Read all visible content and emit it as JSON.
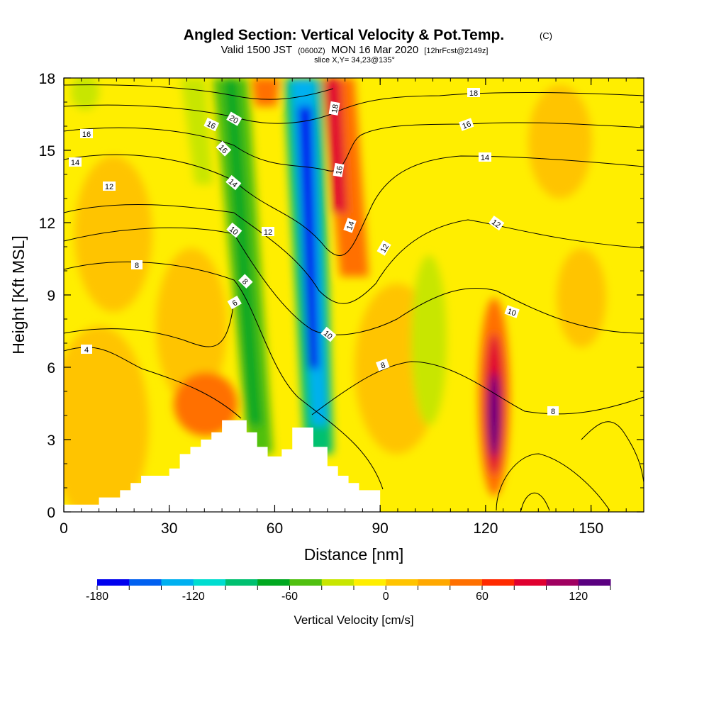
{
  "title": {
    "main": "Angled Section: Vertical Velocity & Pot.Temp.",
    "copyright": "(C)",
    "valid_prefix": "Valid 1500 JST",
    "utc": "(0600Z)",
    "valid_date": "MON 16 Mar 2020",
    "forecast": "[12hrFcst@2149z]",
    "slice": "slice X,Y= 34,23@135°"
  },
  "chart_data": {
    "type": "heatmap",
    "xlabel": "Distance [nm]",
    "ylabel": "Height [Kft MSL]",
    "xlim": [
      0,
      165
    ],
    "ylim": [
      0,
      18
    ],
    "x_ticks": [
      0,
      30,
      60,
      90,
      120,
      150
    ],
    "y_ticks": [
      0,
      3,
      6,
      9,
      12,
      15,
      18
    ],
    "colorbar": {
      "title": "Vertical Velocity [cm/s]",
      "min": -180,
      "max": 140,
      "step": 20,
      "tick_labels": [
        -180,
        -120,
        -60,
        0,
        60,
        120
      ],
      "colors": [
        "#0000ee",
        "#0060f0",
        "#00b0f0",
        "#00ddd0",
        "#00c070",
        "#00a820",
        "#50c010",
        "#c8e600",
        "#ffee00",
        "#ffc400",
        "#ffa800",
        "#ff7000",
        "#ff2a00",
        "#e00030",
        "#a00060",
        "#5a0080"
      ]
    },
    "terrain_profile": {
      "x": [
        0,
        10,
        16,
        19,
        22,
        25,
        30,
        33,
        36,
        39,
        42,
        45,
        52,
        55,
        58,
        62,
        65,
        71,
        75,
        78,
        81,
        84,
        90
      ],
      "height": [
        0.3,
        0.6,
        0.9,
        1.2,
        1.5,
        1.5,
        1.8,
        2.4,
        2.7,
        3.0,
        3.3,
        3.8,
        3.3,
        2.7,
        2.3,
        2.6,
        3.5,
        2.7,
        1.9,
        1.5,
        1.2,
        0.9,
        0.3
      ]
    },
    "vertical_velocity_features": [
      {
        "kind": "updraft",
        "x_center": 75,
        "height_range": [
          9,
          18
        ],
        "peak_cm_s": 100
      },
      {
        "kind": "downdraft",
        "x_center": 71,
        "height_range": [
          3.5,
          18
        ],
        "peak_cm_s": -180
      },
      {
        "kind": "downdraft",
        "x_center": 49,
        "height_range": [
          3,
          18
        ],
        "peak_cm_s": -70
      },
      {
        "kind": "updraft",
        "x_center": 123,
        "height_range": [
          1,
          8
        ],
        "peak_cm_s": 140
      },
      {
        "kind": "updraft",
        "x_center": 40,
        "height_range": [
          3,
          6
        ],
        "peak_cm_s": 50
      }
    ],
    "potential_temperature_labels": [
      "4",
      "6",
      "8",
      "10",
      "12",
      "14",
      "16",
      "18",
      "20"
    ]
  }
}
